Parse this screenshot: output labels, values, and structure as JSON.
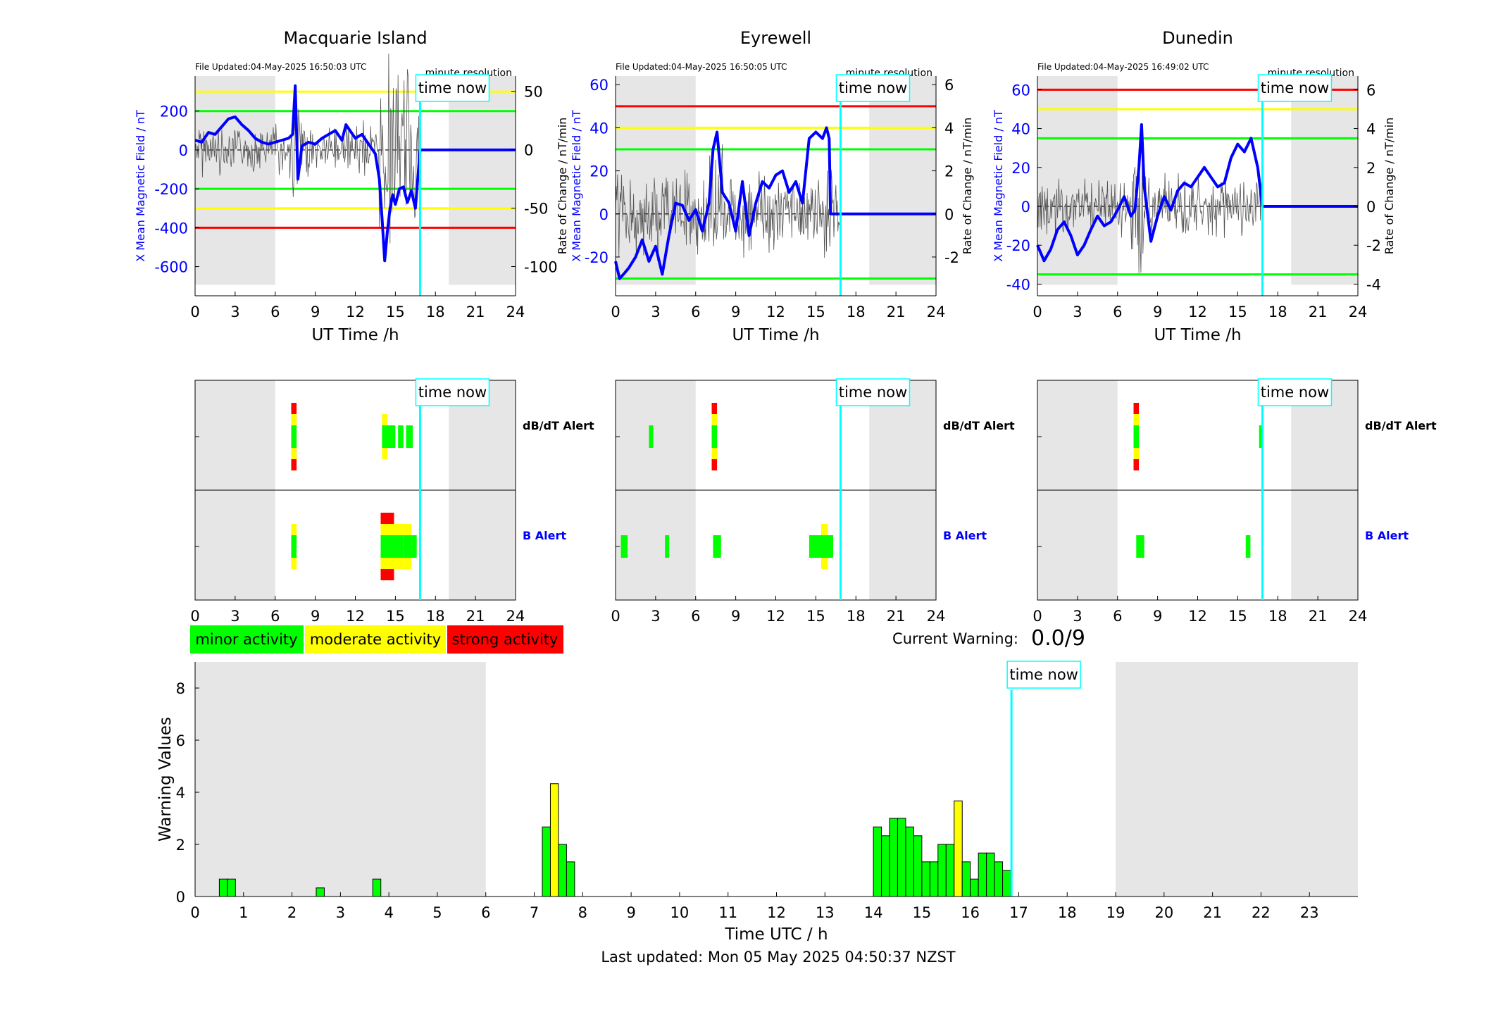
{
  "colors": {
    "red": "#ff0000",
    "yellow": "#ffff00",
    "green": "#00ff00",
    "blue": "#0000ff",
    "cyan": "#00ffff",
    "shade": "#e6e6e6",
    "black": "#000000"
  },
  "time_now_label": "time now",
  "minute_resolution": "minute resolution",
  "x_label_stations": "UT Time /h",
  "left_axis_label": "X Mean Magnetic Field / nT",
  "right_axis_label": "Rate of Change / nT/min",
  "dbdt_alert_label": "dB/dT Alert",
  "b_alert_label": "B Alert",
  "legend": [
    {
      "label": "minor activity",
      "color": "#00ff00"
    },
    {
      "label": "moderate activity",
      "color": "#ffff00"
    },
    {
      "label": "strong activity",
      "color": "#ff0000"
    }
  ],
  "current_warning_label": "Current Warning:",
  "current_warning_value": "0.0/9",
  "last_updated": "Last updated: Mon 05 May 2025 04:50:37 NZST",
  "chart_data": [
    {
      "type": "line",
      "title": "Macquarie Island",
      "file_updated": "File Updated:04-May-2025 16:50:03 UTC",
      "xlabel": "UT Time /h",
      "ylabel": "X Mean Magnetic Field / nT",
      "y2label": "Rate of Change / nT/min",
      "xlim": [
        0,
        24
      ],
      "ylim": [
        -750,
        380
      ],
      "y2lim": [
        -125,
        63
      ],
      "xticks": [
        0,
        3,
        6,
        9,
        12,
        15,
        18,
        21,
        24
      ],
      "yticks": [
        -600,
        -400,
        -200,
        0,
        200
      ],
      "y2ticks": [
        -100,
        -50,
        0,
        50
      ],
      "night": [
        [
          0,
          6
        ],
        [
          19,
          24
        ]
      ],
      "time_now": 16.85,
      "thresholds": [
        {
          "value": 300,
          "color": "#ffff00"
        },
        {
          "value": 200,
          "color": "#00ff00"
        },
        {
          "value": -200,
          "color": "#00ff00"
        },
        {
          "value": -300,
          "color": "#ffff00"
        },
        {
          "value": -400,
          "color": "#ff0000"
        }
      ],
      "series": [
        {
          "x": [
            0,
            0.5,
            1,
            1.5,
            2,
            2.5,
            3,
            3.5,
            4,
            4.5,
            5,
            5.5,
            6,
            6.5,
            7,
            7.3,
            7.5,
            7.7,
            8,
            8.5,
            9,
            9.5,
            10,
            10.5,
            11,
            11.3,
            11.7,
            12,
            12.5,
            13,
            13.5,
            13.8,
            14,
            14.2,
            14.4,
            14.6,
            14.8,
            15,
            15.3,
            15.6,
            15.9,
            16.2,
            16.5,
            16.85,
            24
          ],
          "y": [
            50,
            40,
            90,
            80,
            120,
            160,
            170,
            130,
            100,
            60,
            40,
            30,
            40,
            50,
            60,
            80,
            330,
            -150,
            20,
            40,
            30,
            60,
            80,
            100,
            50,
            130,
            90,
            60,
            80,
            30,
            -20,
            -150,
            -350,
            -570,
            -420,
            -300,
            -230,
            -280,
            -200,
            -190,
            -270,
            -210,
            -300,
            0,
            0
          ]
        }
      ]
    },
    {
      "type": "line",
      "title": "Eyrewell",
      "file_updated": "File Updated:04-May-2025 16:50:05 UTC",
      "xlabel": "UT Time /h",
      "ylabel": "X Mean Magnetic Field / nT",
      "y2label": "Rate of Change / nT/min",
      "xlim": [
        0,
        24
      ],
      "ylim": [
        -38,
        64
      ],
      "y2lim": [
        -3.8,
        6.4
      ],
      "xticks": [
        0,
        3,
        6,
        9,
        12,
        15,
        18,
        21,
        24
      ],
      "yticks": [
        -20,
        0,
        20,
        40,
        60
      ],
      "y2ticks": [
        -2,
        0,
        2,
        4,
        6
      ],
      "night": [
        [
          0,
          6
        ],
        [
          19,
          24
        ]
      ],
      "time_now": 16.85,
      "thresholds": [
        {
          "value": 50,
          "color": "#ff0000"
        },
        {
          "value": 40,
          "color": "#ffff00"
        },
        {
          "value": 30,
          "color": "#00ff00"
        },
        {
          "value": -30,
          "color": "#00ff00"
        }
      ],
      "series": [
        {
          "x": [
            0,
            0.3,
            0.6,
            1,
            1.5,
            2,
            2.5,
            3,
            3.5,
            4,
            4.5,
            5,
            5.5,
            6,
            6.5,
            7,
            7.3,
            7.6,
            8,
            8.5,
            9,
            9.5,
            10,
            10.5,
            11,
            11.5,
            12,
            12.5,
            13,
            13.5,
            14,
            14.5,
            15,
            15.5,
            15.8,
            16,
            16.1,
            24
          ],
          "y": [
            -22,
            -30,
            -28,
            -25,
            -20,
            -12,
            -22,
            -15,
            -28,
            -10,
            5,
            4,
            -3,
            2,
            -8,
            5,
            30,
            38,
            10,
            5,
            -8,
            15,
            -10,
            5,
            15,
            12,
            18,
            20,
            10,
            15,
            5,
            35,
            38,
            35,
            40,
            35,
            0,
            0
          ]
        }
      ]
    },
    {
      "type": "line",
      "title": "Dunedin",
      "file_updated": "File Updated:04-May-2025 16:49:02 UTC",
      "xlabel": "UT Time /h",
      "ylabel": "X Mean Magnetic Field / nT",
      "y2label": "Rate of Change / nT/min",
      "xlim": [
        0,
        24
      ],
      "ylim": [
        -46,
        67
      ],
      "y2lim": [
        -4.6,
        6.7
      ],
      "xticks": [
        0,
        3,
        6,
        9,
        12,
        15,
        18,
        21,
        24
      ],
      "yticks": [
        -40,
        -20,
        0,
        20,
        40,
        60
      ],
      "y2ticks": [
        -4,
        -2,
        0,
        2,
        4,
        6
      ],
      "night": [
        [
          0,
          6
        ],
        [
          19,
          24
        ]
      ],
      "time_now": 16.85,
      "thresholds": [
        {
          "value": 60,
          "color": "#ff0000"
        },
        {
          "value": 50,
          "color": "#ffff00"
        },
        {
          "value": 35,
          "color": "#00ff00"
        },
        {
          "value": -35,
          "color": "#00ff00"
        }
      ],
      "series": [
        {
          "x": [
            0,
            0.5,
            1,
            1.5,
            2,
            2.5,
            3,
            3.5,
            4,
            4.5,
            5,
            5.5,
            6,
            6.5,
            7,
            7.3,
            7.6,
            7.8,
            8,
            8.5,
            9,
            9.5,
            10,
            10.5,
            11,
            11.5,
            12,
            12.5,
            13,
            13.5,
            14,
            14.5,
            15,
            15.5,
            16,
            16.5,
            16.85,
            24
          ],
          "y": [
            -20,
            -28,
            -22,
            -12,
            -8,
            -15,
            -25,
            -20,
            -12,
            -5,
            -10,
            -8,
            -2,
            5,
            -5,
            -2,
            20,
            42,
            10,
            -18,
            -5,
            5,
            -2,
            8,
            12,
            10,
            15,
            20,
            15,
            10,
            12,
            25,
            32,
            28,
            35,
            20,
            0,
            0
          ]
        }
      ]
    },
    {
      "type": "bar",
      "title": "",
      "kind": "alerts",
      "xlim": [
        0,
        24
      ],
      "xticks": [
        0,
        3,
        6,
        9,
        12,
        15,
        18,
        21,
        24
      ],
      "night": [
        [
          0,
          6
        ],
        [
          19,
          24
        ]
      ],
      "time_now": 16.85,
      "dbdt": [
        {
          "x": 7.2,
          "w": 0.4,
          "level": 3
        },
        {
          "x": 14,
          "w": 0.4,
          "level": 2
        },
        {
          "x": 14.4,
          "w": 0.6,
          "level": 1
        },
        {
          "x": 15.2,
          "w": 0.4,
          "level": 1
        },
        {
          "x": 15.8,
          "w": 0.5,
          "level": 1
        }
      ],
      "b": [
        {
          "x": 7.2,
          "w": 0.4,
          "level": 2
        },
        {
          "x": 13.9,
          "w": 1.0,
          "level": 3
        },
        {
          "x": 14.9,
          "w": 0.7,
          "level": 2
        },
        {
          "x": 15.6,
          "w": 0.6,
          "level": 2
        },
        {
          "x": 16.2,
          "w": 0.4,
          "level": 1
        }
      ]
    },
    {
      "type": "bar",
      "title": "",
      "kind": "alerts",
      "xlim": [
        0,
        24
      ],
      "xticks": [
        0,
        3,
        6,
        9,
        12,
        15,
        18,
        21,
        24
      ],
      "night": [
        [
          0,
          6
        ],
        [
          19,
          24
        ]
      ],
      "time_now": 16.85,
      "dbdt": [
        {
          "x": 2.5,
          "w": 0.3,
          "level": 1
        },
        {
          "x": 7.2,
          "w": 0.4,
          "level": 3
        }
      ],
      "b": [
        {
          "x": 0.4,
          "w": 0.5,
          "level": 1
        },
        {
          "x": 3.7,
          "w": 0.3,
          "level": 1
        },
        {
          "x": 7.3,
          "w": 0.6,
          "level": 1
        },
        {
          "x": 14.5,
          "w": 1.8,
          "level": 1
        },
        {
          "x": 15.4,
          "w": 0.5,
          "level": 2
        }
      ]
    },
    {
      "type": "bar",
      "title": "",
      "kind": "alerts",
      "xlim": [
        0,
        24
      ],
      "xticks": [
        0,
        3,
        6,
        9,
        12,
        15,
        18,
        21,
        24
      ],
      "night": [
        [
          0,
          6
        ],
        [
          19,
          24
        ]
      ],
      "time_now": 16.85,
      "dbdt": [
        {
          "x": 7.2,
          "w": 0.4,
          "level": 3
        },
        {
          "x": 16.6,
          "w": 0.25,
          "level": 1
        }
      ],
      "b": [
        {
          "x": 7.4,
          "w": 0.6,
          "level": 1
        },
        {
          "x": 15.6,
          "w": 0.35,
          "level": 1
        }
      ]
    },
    {
      "type": "bar",
      "title": "",
      "xlabel": "Time UTC / h",
      "ylabel": "Warning Values",
      "xlim": [
        0,
        24
      ],
      "ylim": [
        0,
        9
      ],
      "xticks": [
        0,
        1,
        2,
        3,
        4,
        5,
        6,
        7,
        8,
        9,
        10,
        11,
        12,
        13,
        14,
        15,
        16,
        17,
        18,
        19,
        20,
        21,
        22,
        23
      ],
      "yticks": [
        0,
        2,
        4,
        6,
        8
      ],
      "night": [
        [
          0,
          6
        ],
        [
          19,
          24
        ]
      ],
      "time_now": 16.85,
      "bar_width": 0.1667,
      "bars": [
        {
          "x": 0.5,
          "v": 0.67,
          "c": "green"
        },
        {
          "x": 0.667,
          "v": 0.67,
          "c": "green"
        },
        {
          "x": 2.5,
          "v": 0.33,
          "c": "green"
        },
        {
          "x": 3.667,
          "v": 0.67,
          "c": "green"
        },
        {
          "x": 7.167,
          "v": 2.67,
          "c": "green"
        },
        {
          "x": 7.333,
          "v": 4.33,
          "c": "yellow"
        },
        {
          "x": 7.5,
          "v": 2.0,
          "c": "green"
        },
        {
          "x": 7.667,
          "v": 1.33,
          "c": "green"
        },
        {
          "x": 14.0,
          "v": 2.67,
          "c": "green"
        },
        {
          "x": 14.167,
          "v": 2.33,
          "c": "green"
        },
        {
          "x": 14.333,
          "v": 3.0,
          "c": "green"
        },
        {
          "x": 14.5,
          "v": 3.0,
          "c": "green"
        },
        {
          "x": 14.667,
          "v": 2.67,
          "c": "green"
        },
        {
          "x": 14.833,
          "v": 2.33,
          "c": "green"
        },
        {
          "x": 15.0,
          "v": 1.33,
          "c": "green"
        },
        {
          "x": 15.167,
          "v": 1.33,
          "c": "green"
        },
        {
          "x": 15.333,
          "v": 2.0,
          "c": "green"
        },
        {
          "x": 15.5,
          "v": 2.0,
          "c": "green"
        },
        {
          "x": 15.667,
          "v": 3.67,
          "c": "yellow"
        },
        {
          "x": 15.833,
          "v": 1.33,
          "c": "green"
        },
        {
          "x": 16.0,
          "v": 0.67,
          "c": "green"
        },
        {
          "x": 16.167,
          "v": 1.67,
          "c": "green"
        },
        {
          "x": 16.333,
          "v": 1.67,
          "c": "green"
        },
        {
          "x": 16.5,
          "v": 1.33,
          "c": "green"
        },
        {
          "x": 16.667,
          "v": 1.0,
          "c": "green"
        }
      ]
    }
  ]
}
